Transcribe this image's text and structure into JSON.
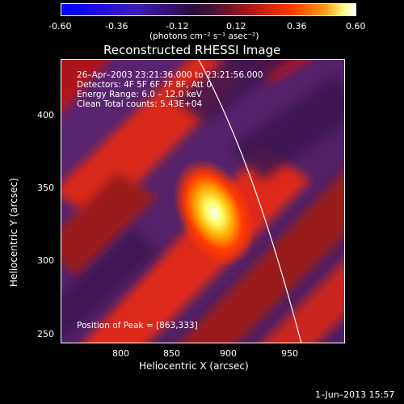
{
  "colorbar": {
    "colors": [
      "#0000ff",
      "#3b1bbd",
      "#2a0b3a",
      "#b41717",
      "#ff7a00",
      "#ffffff"
    ],
    "ticks": [
      "-0.60",
      "-0.36",
      "-0.12",
      "0.12",
      "0.36",
      "0.60"
    ],
    "units": "(photons cm⁻² s⁻¹ asec⁻²)"
  },
  "image": {
    "title": "Reconstructed RHESSI Image",
    "info_lines": [
      "26–Apr–2003 23:21:36.000 to 23:21:56.000",
      "Detectors: 4F 5F 6F 7F 8F, Att 0",
      "Energy Range: 6.0 – 12.0 keV",
      "Clean     Total counts: 5.43E+04"
    ],
    "peak_label": "Position of Peak = [863,333]",
    "x_axis_label": "Heliocentric X (arcsec)",
    "y_axis_label": "Heliocentric Y (arcsec)",
    "x_ticks": [
      "800",
      "850",
      "900",
      "950"
    ],
    "y_ticks": [
      "400",
      "350",
      "300",
      "250"
    ],
    "footer_date": "1–Jun–2013 15:57"
  }
}
